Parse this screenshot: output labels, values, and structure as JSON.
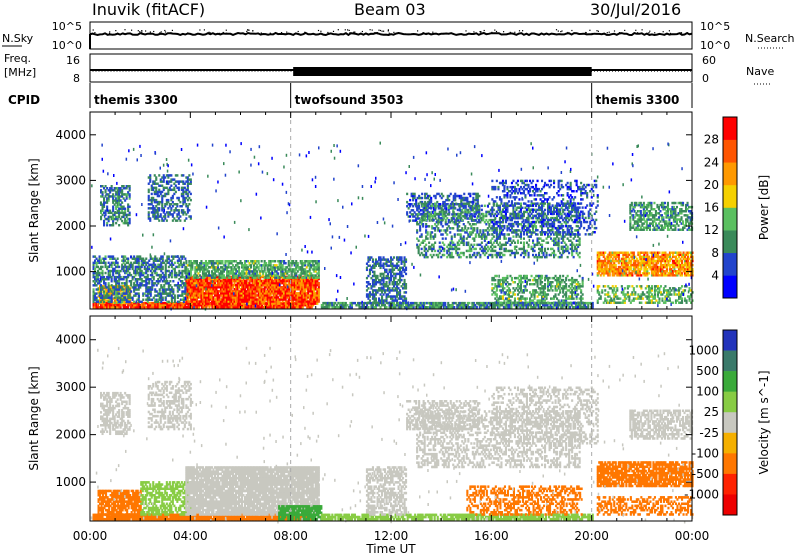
{
  "header": {
    "station": "Inuvik (fitACF)",
    "beam": "Beam 03",
    "date": "30/Jul/2016"
  },
  "strip": {
    "nsky_label": "N.Sky",
    "nsearch_label": "N.Search",
    "nave_label": "Nave",
    "freq_label": "Freq.",
    "freq_unit": "[MHz]",
    "cpid_label": "CPID",
    "count_ticks": [
      "10^5",
      "10^0"
    ],
    "freq_ticks": [
      "16",
      "8"
    ],
    "nave_ticks": [
      "60",
      "0"
    ]
  },
  "chart_data": [
    {
      "type": "line",
      "title": "N.Sky / N.Search",
      "x": [
        "00:00",
        "04:00",
        "08:00",
        "12:00",
        "16:00",
        "20:00",
        "00:00"
      ],
      "ylim": [
        0,
        100000
      ],
      "series": [
        {
          "name": "N.Sky",
          "style": "solid",
          "values": [
            20000,
            22000,
            20000,
            21000,
            22000,
            20000,
            21000
          ]
        },
        {
          "name": "N.Search",
          "style": "dotted",
          "values": [
            25000,
            40000,
            24000,
            26000,
            27000,
            25000,
            26000
          ]
        }
      ]
    },
    {
      "type": "line",
      "title": "Freq. / Nave",
      "x": [
        "00:00",
        "08:00",
        "09:00",
        "20:00",
        "00:00"
      ],
      "series": [
        {
          "name": "Freq. [MHz]",
          "values": [
            11,
            11,
            11,
            11,
            11
          ]
        },
        {
          "name": "Nave",
          "values": [
            20,
            20,
            45,
            20,
            20
          ]
        }
      ]
    },
    {
      "type": "table",
      "title": "CPID",
      "segments": [
        {
          "label": "themis 3300",
          "start": 0,
          "end": 8
        },
        {
          "label": "twofsound 3503",
          "start": 8,
          "end": 20
        },
        {
          "label": "themis 3300",
          "start": 20,
          "end": 24
        }
      ]
    },
    {
      "type": "heatmap",
      "quantity": "Power",
      "ylabel": "Slant Range [km]",
      "xlabel": "Time UT",
      "xlim_hours": [
        0,
        24
      ],
      "ylim_km": [
        180,
        4500
      ],
      "y_ticks": [
        1000,
        2000,
        3000,
        4000
      ],
      "colorbar": {
        "label": "Power [dB]",
        "ticks": [
          4,
          8,
          12,
          16,
          20,
          24,
          28
        ],
        "range": [
          0,
          32
        ],
        "colors": [
          "#0000ff",
          "#2244cc",
          "#3a8a5a",
          "#5bc060",
          "#f5d000",
          "#ff9900",
          "#ff5500",
          "#ff0000"
        ]
      },
      "regions": [
        {
          "t0": 0.1,
          "t1": 8.9,
          "r0": 200,
          "r1": 320,
          "value": 28,
          "density": 0.95
        },
        {
          "t0": 0.3,
          "t1": 1.6,
          "r0": 300,
          "r1": 700,
          "value": 20,
          "density": 0.75
        },
        {
          "t0": 3.8,
          "t1": 9.1,
          "r0": 280,
          "r1": 900,
          "value": 27,
          "density": 0.95
        },
        {
          "t0": 3.8,
          "t1": 9.1,
          "r0": 850,
          "r1": 1250,
          "value": 12,
          "density": 0.7
        },
        {
          "t0": 0.1,
          "t1": 3.8,
          "r0": 320,
          "r1": 1350,
          "value": 9,
          "density": 0.55
        },
        {
          "t0": 0.4,
          "t1": 1.6,
          "r0": 2000,
          "r1": 2900,
          "value": 9,
          "density": 0.55
        },
        {
          "t0": 2.3,
          "t1": 4.0,
          "r0": 2100,
          "r1": 3100,
          "value": 8,
          "density": 0.45
        },
        {
          "t0": 9.2,
          "t1": 20.0,
          "r0": 200,
          "r1": 320,
          "value": 10,
          "density": 0.8
        },
        {
          "t0": 11.0,
          "t1": 12.6,
          "r0": 300,
          "r1": 1300,
          "value": 8,
          "density": 0.55
        },
        {
          "t0": 12.6,
          "t1": 15.5,
          "r0": 2100,
          "r1": 2700,
          "value": 7,
          "density": 0.45
        },
        {
          "t0": 13.0,
          "t1": 19.5,
          "r0": 1300,
          "r1": 2500,
          "value": 10,
          "density": 0.4
        },
        {
          "t0": 16.0,
          "t1": 19.6,
          "r0": 300,
          "r1": 900,
          "value": 12,
          "density": 0.45
        },
        {
          "t0": 20.2,
          "t1": 24.0,
          "r0": 900,
          "r1": 1400,
          "value": 22,
          "density": 0.8
        },
        {
          "t0": 21.5,
          "t1": 24.0,
          "r0": 1900,
          "r1": 2500,
          "value": 11,
          "density": 0.6
        },
        {
          "t0": 20.2,
          "t1": 24.0,
          "r0": 300,
          "r1": 700,
          "value": 13,
          "density": 0.45
        },
        {
          "t0": 16.0,
          "t1": 20.2,
          "r0": 1800,
          "r1": 3000,
          "value": 6,
          "density": 0.3
        }
      ]
    },
    {
      "type": "heatmap",
      "quantity": "Velocity",
      "ylabel": "Slant Range [km]",
      "xlabel": "Time UT",
      "xlim_hours": [
        0,
        24
      ],
      "ylim_km": [
        180,
        4500
      ],
      "y_ticks": [
        1000,
        2000,
        3000,
        4000
      ],
      "colorbar": {
        "label": "Velocity [m s^-1]",
        "ticks": [
          1000,
          500,
          100,
          25,
          -25,
          -100,
          -500,
          -1000
        ],
        "colors": [
          "#2233bb",
          "#3a7a6a",
          "#3aaa3a",
          "#88cc44",
          "#c8c8c0",
          "#f5b000",
          "#ff7700",
          "#ff2200",
          "#ee0000"
        ]
      },
      "regions": [
        {
          "t0": 0.1,
          "t1": 8.9,
          "r0": 200,
          "r1": 330,
          "value": -200,
          "density": 0.95
        },
        {
          "t0": 0.3,
          "t1": 2.0,
          "r0": 300,
          "r1": 800,
          "value": -150,
          "density": 0.75
        },
        {
          "t0": 2.0,
          "t1": 4.0,
          "r0": 300,
          "r1": 1000,
          "value": 50,
          "density": 0.6
        },
        {
          "t0": 3.8,
          "t1": 9.1,
          "r0": 300,
          "r1": 1300,
          "value": 0,
          "density": 0.9
        },
        {
          "t0": 7.5,
          "t1": 9.2,
          "r0": 200,
          "r1": 500,
          "value": 300,
          "density": 0.8
        },
        {
          "t0": 0.4,
          "t1": 1.6,
          "r0": 2000,
          "r1": 2900,
          "value": 0,
          "density": 0.55
        },
        {
          "t0": 2.3,
          "t1": 4.0,
          "r0": 2100,
          "r1": 3100,
          "value": 0,
          "density": 0.45
        },
        {
          "t0": 9.2,
          "t1": 20.0,
          "r0": 200,
          "r1": 330,
          "value": 60,
          "density": 0.8
        },
        {
          "t0": 11.0,
          "t1": 12.6,
          "r0": 300,
          "r1": 1300,
          "value": 0,
          "density": 0.55
        },
        {
          "t0": 12.6,
          "t1": 15.5,
          "r0": 2100,
          "r1": 2700,
          "value": 0,
          "density": 0.45
        },
        {
          "t0": 13.0,
          "t1": 19.5,
          "r0": 1300,
          "r1": 2500,
          "value": 0,
          "density": 0.4
        },
        {
          "t0": 15.0,
          "t1": 19.6,
          "r0": 300,
          "r1": 900,
          "value": -200,
          "density": 0.45
        },
        {
          "t0": 20.2,
          "t1": 24.0,
          "r0": 900,
          "r1": 1400,
          "value": -300,
          "density": 0.8
        },
        {
          "t0": 21.5,
          "t1": 24.0,
          "r0": 1900,
          "r1": 2500,
          "value": 0,
          "density": 0.6
        },
        {
          "t0": 20.2,
          "t1": 24.0,
          "r0": 300,
          "r1": 700,
          "value": -400,
          "density": 0.45
        },
        {
          "t0": 16.0,
          "t1": 20.2,
          "r0": 1800,
          "r1": 3000,
          "value": 0,
          "density": 0.3
        }
      ]
    }
  ],
  "xaxis": {
    "ticks": [
      "00:00",
      "04:00",
      "08:00",
      "12:00",
      "16:00",
      "20:00",
      "00:00"
    ],
    "label": "Time UT"
  }
}
